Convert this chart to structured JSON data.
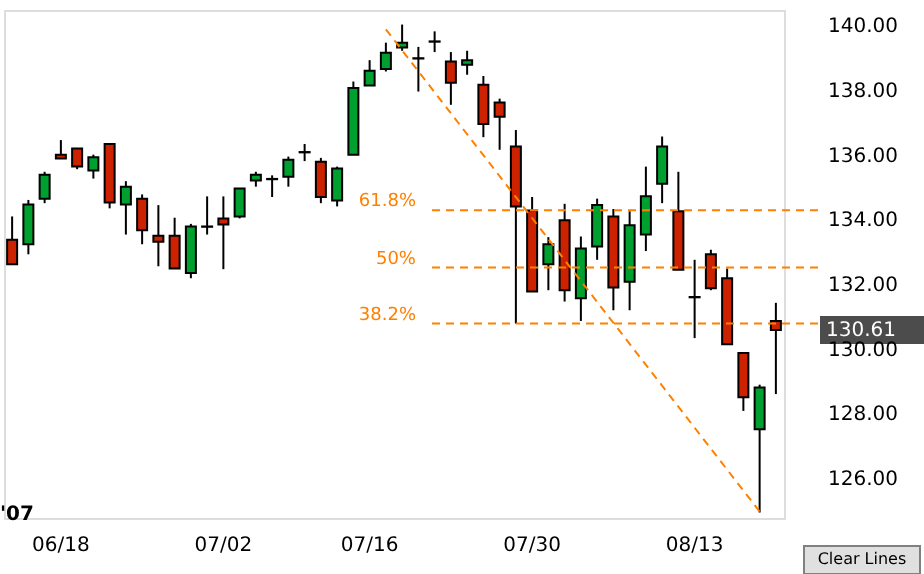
{
  "chart_data": {
    "type": "candlestick",
    "categories": [
      null,
      null,
      null,
      "06/18",
      null,
      null,
      null,
      null,
      null,
      null,
      null,
      null,
      null,
      "07/02",
      null,
      null,
      null,
      null,
      null,
      null,
      null,
      null,
      "07/16",
      null,
      null,
      null,
      null,
      null,
      null,
      null,
      null,
      null,
      "07/30",
      null,
      null,
      null,
      null,
      null,
      null,
      null,
      null,
      null,
      "08/13",
      null,
      null,
      null,
      null,
      null
    ],
    "ohlc": [
      [
        133.4,
        134.12,
        132.64,
        132.64
      ],
      [
        133.26,
        134.63,
        132.95,
        134.49
      ],
      [
        134.67,
        135.5,
        134.53,
        135.41
      ],
      [
        136.03,
        136.48,
        135.91,
        135.91
      ],
      [
        136.22,
        136.22,
        135.58,
        135.66
      ],
      [
        135.54,
        136.03,
        135.29,
        135.95
      ],
      [
        136.36,
        136.36,
        134.37,
        134.55
      ],
      [
        134.49,
        135.21,
        133.56,
        135.04
      ],
      [
        134.67,
        134.8,
        133.26,
        133.69
      ],
      [
        133.52,
        134.47,
        132.58,
        133.34
      ],
      [
        133.52,
        134.08,
        132.51,
        132.51
      ],
      [
        132.37,
        133.89,
        132.21,
        133.81
      ],
      [
        133.81,
        134.74,
        133.56,
        133.8
      ],
      [
        134.06,
        134.74,
        132.49,
        133.87
      ],
      [
        134.12,
        134.98,
        134.06,
        134.98
      ],
      [
        135.23,
        135.5,
        135.04,
        135.41
      ],
      [
        135.28,
        135.39,
        134.72,
        135.27
      ],
      [
        135.35,
        135.97,
        135.04,
        135.87
      ],
      [
        136.11,
        136.36,
        135.83,
        136.1
      ],
      [
        135.81,
        135.93,
        134.53,
        134.72
      ],
      [
        134.61,
        135.66,
        134.43,
        135.6
      ],
      [
        136.03,
        138.29,
        136.03,
        138.09
      ],
      [
        138.17,
        138.95,
        138.17,
        138.62
      ],
      [
        138.68,
        139.49,
        138.6,
        139.18
      ],
      [
        139.34,
        140.05,
        139.24,
        139.49
      ],
      [
        139.01,
        139.36,
        137.98,
        139.0
      ],
      [
        139.53,
        139.84,
        139.2,
        139.52
      ],
      [
        138.91,
        139.2,
        137.57,
        138.25
      ],
      [
        138.81,
        139.24,
        138.5,
        138.95
      ],
      [
        138.19,
        138.46,
        136.57,
        136.98
      ],
      [
        137.64,
        137.76,
        136.18,
        137.2
      ],
      [
        136.28,
        136.79,
        130.81,
        134.43
      ],
      [
        134.3,
        134.72,
        131.8,
        131.8
      ],
      [
        132.64,
        133.48,
        131.84,
        133.26
      ],
      [
        134.0,
        134.51,
        131.49,
        131.84
      ],
      [
        131.59,
        133.5,
        130.89,
        133.13
      ],
      [
        133.19,
        134.67,
        132.78,
        134.47
      ],
      [
        134.12,
        134.35,
        131.22,
        131.92
      ],
      [
        132.1,
        134.28,
        131.22,
        133.85
      ],
      [
        133.56,
        135.66,
        133.05,
        134.74
      ],
      [
        135.13,
        136.59,
        134.53,
        136.28
      ],
      [
        134.28,
        135.5,
        132.47,
        132.47
      ],
      [
        131.63,
        132.78,
        130.36,
        131.62
      ],
      [
        132.95,
        133.09,
        131.84,
        131.9
      ],
      [
        132.21,
        132.51,
        130.17,
        130.17
      ],
      [
        129.9,
        129.9,
        128.11,
        128.53
      ],
      [
        127.54,
        128.92,
        124.97,
        128.83
      ],
      [
        130.89,
        131.45,
        128.63,
        130.61
      ]
    ],
    "colors": [
      "#cc2200",
      "#00a030",
      "#00a030",
      "#cc2200",
      "#cc2200",
      "#00a030",
      "#cc2200",
      "#00a030",
      "#cc2200",
      "#cc2200",
      "#cc2200",
      "#00a030",
      "#000000",
      "#cc2200",
      "#00a030",
      "#00a030",
      "#000000",
      "#00a030",
      "#000000",
      "#cc2200",
      "#00a030",
      "#00a030",
      "#00a030",
      "#00a030",
      "#00a030",
      "#000000",
      "#000000",
      "#cc2200",
      "#00a030",
      "#cc2200",
      "#cc2200",
      "#cc2200",
      "#cc2200",
      "#00a030",
      "#cc2200",
      "#00a030",
      "#00a030",
      "#cc2200",
      "#00a030",
      "#00a030",
      "#00a030",
      "#cc2200",
      "#000000",
      "#cc2200",
      "#cc2200",
      "#cc2200",
      "#00a030",
      "#cc2200"
    ],
    "series": [
      {
        "type": "line",
        "color": "#ff8000",
        "line_style": "dashed",
        "values": [
          null,
          null,
          null,
          null,
          null,
          null,
          null,
          null,
          null,
          null,
          null,
          null,
          null,
          null,
          null,
          null,
          null,
          null,
          null,
          null,
          null,
          null,
          null,
          139.9,
          null,
          null,
          null,
          null,
          null,
          null,
          null,
          null,
          null,
          null,
          null,
          null,
          null,
          null,
          null,
          null,
          null,
          null,
          null,
          null,
          null,
          null,
          125.0,
          null
        ]
      }
    ],
    "ylim": [
      124.8,
      140.5
    ],
    "yticks": [
      {
        "value": 126,
        "label": "126.00"
      },
      {
        "value": 128,
        "label": "128.00"
      },
      {
        "value": 130,
        "label": "130.00"
      },
      {
        "value": 132,
        "label": "132.00"
      },
      {
        "value": 134,
        "label": "134.00"
      },
      {
        "value": 136,
        "label": "136.00"
      },
      {
        "value": 138,
        "label": "138.00"
      },
      {
        "value": 140,
        "label": "140.00"
      }
    ],
    "ref_lines": [
      {
        "axis": "y",
        "value": 134.31,
        "color": "#ff8000",
        "line_style": "dashed"
      },
      {
        "axis": "y",
        "value": 132.54,
        "color": "#ff8000",
        "line_style": "dashed"
      },
      {
        "axis": "y",
        "value": 130.81,
        "color": "#ff8000",
        "line_style": "dashed"
      }
    ],
    "annotations": [
      "61.8%",
      "50%",
      "38.2%",
      "'07",
      "130.61",
      "Clear Lines"
    ],
    "grid": false
  }
}
